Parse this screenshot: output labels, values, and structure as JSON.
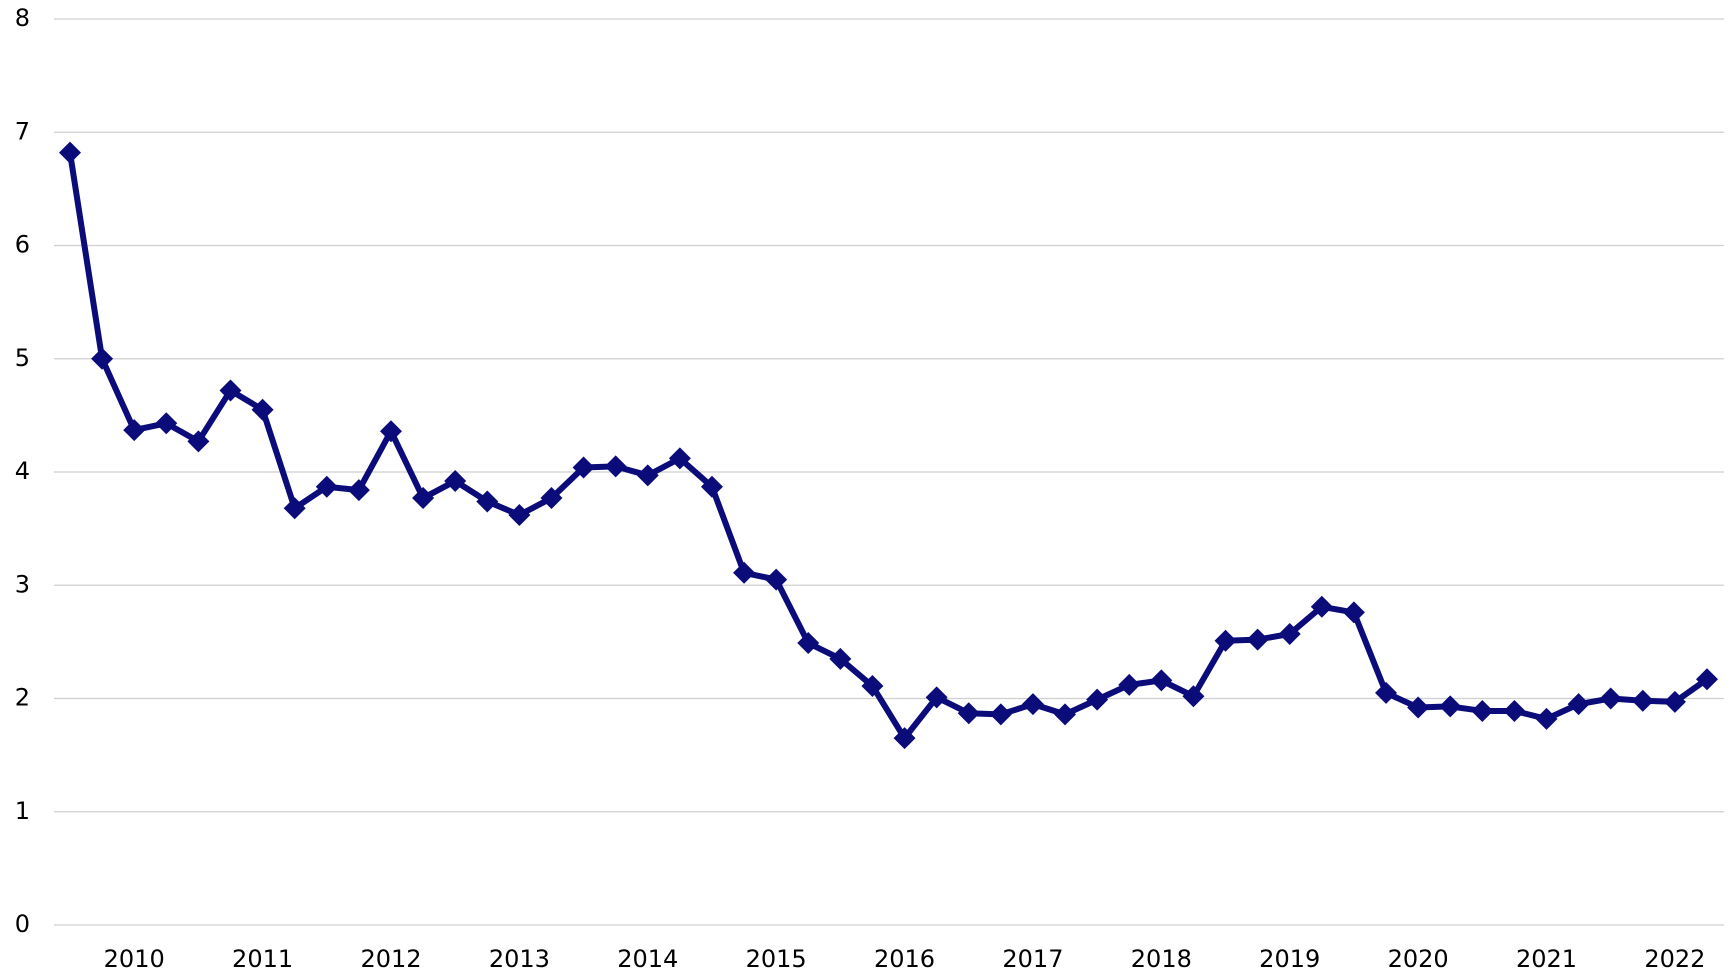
{
  "chart_data": {
    "type": "line",
    "categories": [
      null,
      null,
      "2010",
      null,
      null,
      null,
      "2011",
      null,
      null,
      null,
      "2012",
      null,
      null,
      null,
      "2013",
      null,
      null,
      null,
      "2014",
      null,
      null,
      null,
      "2015",
      null,
      null,
      null,
      "2016",
      null,
      null,
      null,
      "2017",
      null,
      null,
      null,
      "2018",
      null,
      null,
      null,
      "2019",
      null,
      null,
      null,
      "2020",
      null,
      null,
      null,
      "2021",
      null,
      null,
      null,
      "2022",
      null
    ],
    "series": [
      {
        "color": "#0b0b7a",
        "values": [
          6.82,
          5.0,
          4.37,
          4.43,
          4.27,
          4.72,
          4.55,
          3.68,
          3.87,
          3.84,
          4.36,
          3.77,
          3.92,
          3.74,
          3.62,
          3.77,
          4.04,
          4.05,
          3.97,
          4.12,
          3.87,
          3.11,
          3.05,
          2.49,
          2.35,
          2.11,
          1.65,
          2.01,
          1.87,
          1.86,
          1.95,
          1.86,
          1.99,
          2.12,
          2.16,
          2.02,
          2.51,
          2.52,
          2.57,
          2.81,
          2.76,
          2.05,
          1.92,
          1.93,
          1.89,
          1.89,
          1.82,
          1.95,
          2.0,
          1.98,
          1.97,
          2.17
        ]
      }
    ],
    "ylim": [
      0,
      8
    ],
    "yticks": [
      0,
      1,
      2,
      3,
      4,
      5,
      6,
      7,
      8
    ],
    "grid": true
  }
}
